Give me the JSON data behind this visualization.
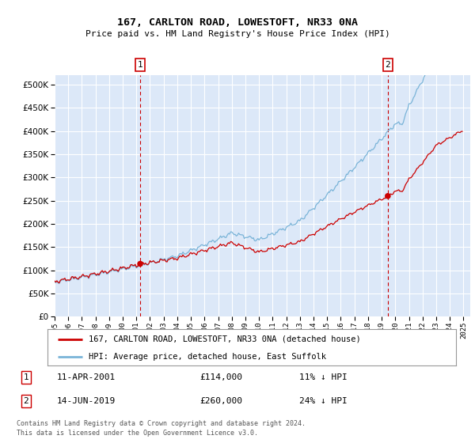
{
  "title1": "167, CARLTON ROAD, LOWESTOFT, NR33 0NA",
  "title2": "Price paid vs. HM Land Registry's House Price Index (HPI)",
  "bg_color": "#ffffff",
  "plot_bg": "#dce8f8",
  "grid_color": "#ffffff",
  "hpi_color": "#7ab4d8",
  "price_color": "#cc0000",
  "vline_color": "#cc0000",
  "sale1_year": 2001.28,
  "sale1_price": 114000,
  "sale1_label": "1",
  "sale2_year": 2019.45,
  "sale2_price": 260000,
  "sale2_label": "2",
  "ylim_min": 0,
  "ylim_max": 520000,
  "yticks": [
    0,
    50000,
    100000,
    150000,
    200000,
    250000,
    300000,
    350000,
    400000,
    450000,
    500000
  ],
  "xmin": 1995,
  "xmax": 2025.5,
  "legend_line1": "167, CARLTON ROAD, LOWESTOFT, NR33 0NA (detached house)",
  "legend_line2": "HPI: Average price, detached house, East Suffolk",
  "note1_label": "1",
  "note1_date": "11-APR-2001",
  "note1_price": "£114,000",
  "note1_hpi": "11% ↓ HPI",
  "note2_label": "2",
  "note2_date": "14-JUN-2019",
  "note2_price": "£260,000",
  "note2_hpi": "24% ↓ HPI",
  "footer": "Contains HM Land Registry data © Crown copyright and database right 2024.\nThis data is licensed under the Open Government Licence v3.0."
}
